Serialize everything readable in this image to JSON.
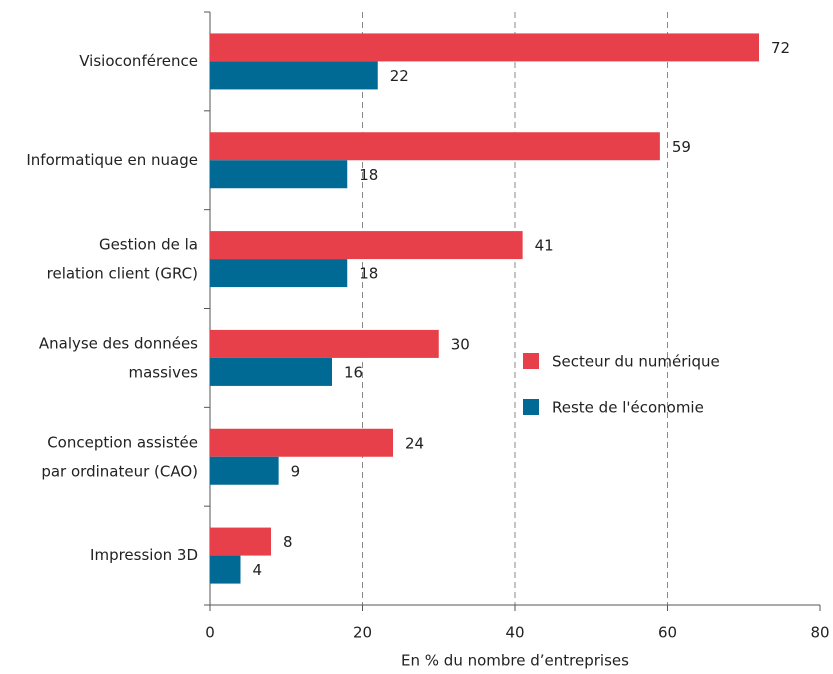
{
  "chart_data": {
    "type": "bar",
    "orientation": "horizontal",
    "categories": [
      "Visioconférence",
      "Informatique en nuage",
      "Gestion de la\nrelation client (GRC)",
      "Analyse des données\nmassives",
      "Conception assistée\npar ordinateur (CAO)",
      "Impression 3D"
    ],
    "series": [
      {
        "name": "Secteur du numérique",
        "color": "#e8404a",
        "values": [
          72,
          59,
          41,
          30,
          24,
          8
        ]
      },
      {
        "name": "Reste de l'économie",
        "color": "#006a94",
        "values": [
          22,
          18,
          18,
          16,
          9,
          4
        ]
      }
    ],
    "xlabel": "En % du nombre d’entreprises",
    "xlim": [
      0,
      80
    ],
    "xticks": [
      0,
      20,
      40,
      60,
      80
    ],
    "grid": true
  }
}
